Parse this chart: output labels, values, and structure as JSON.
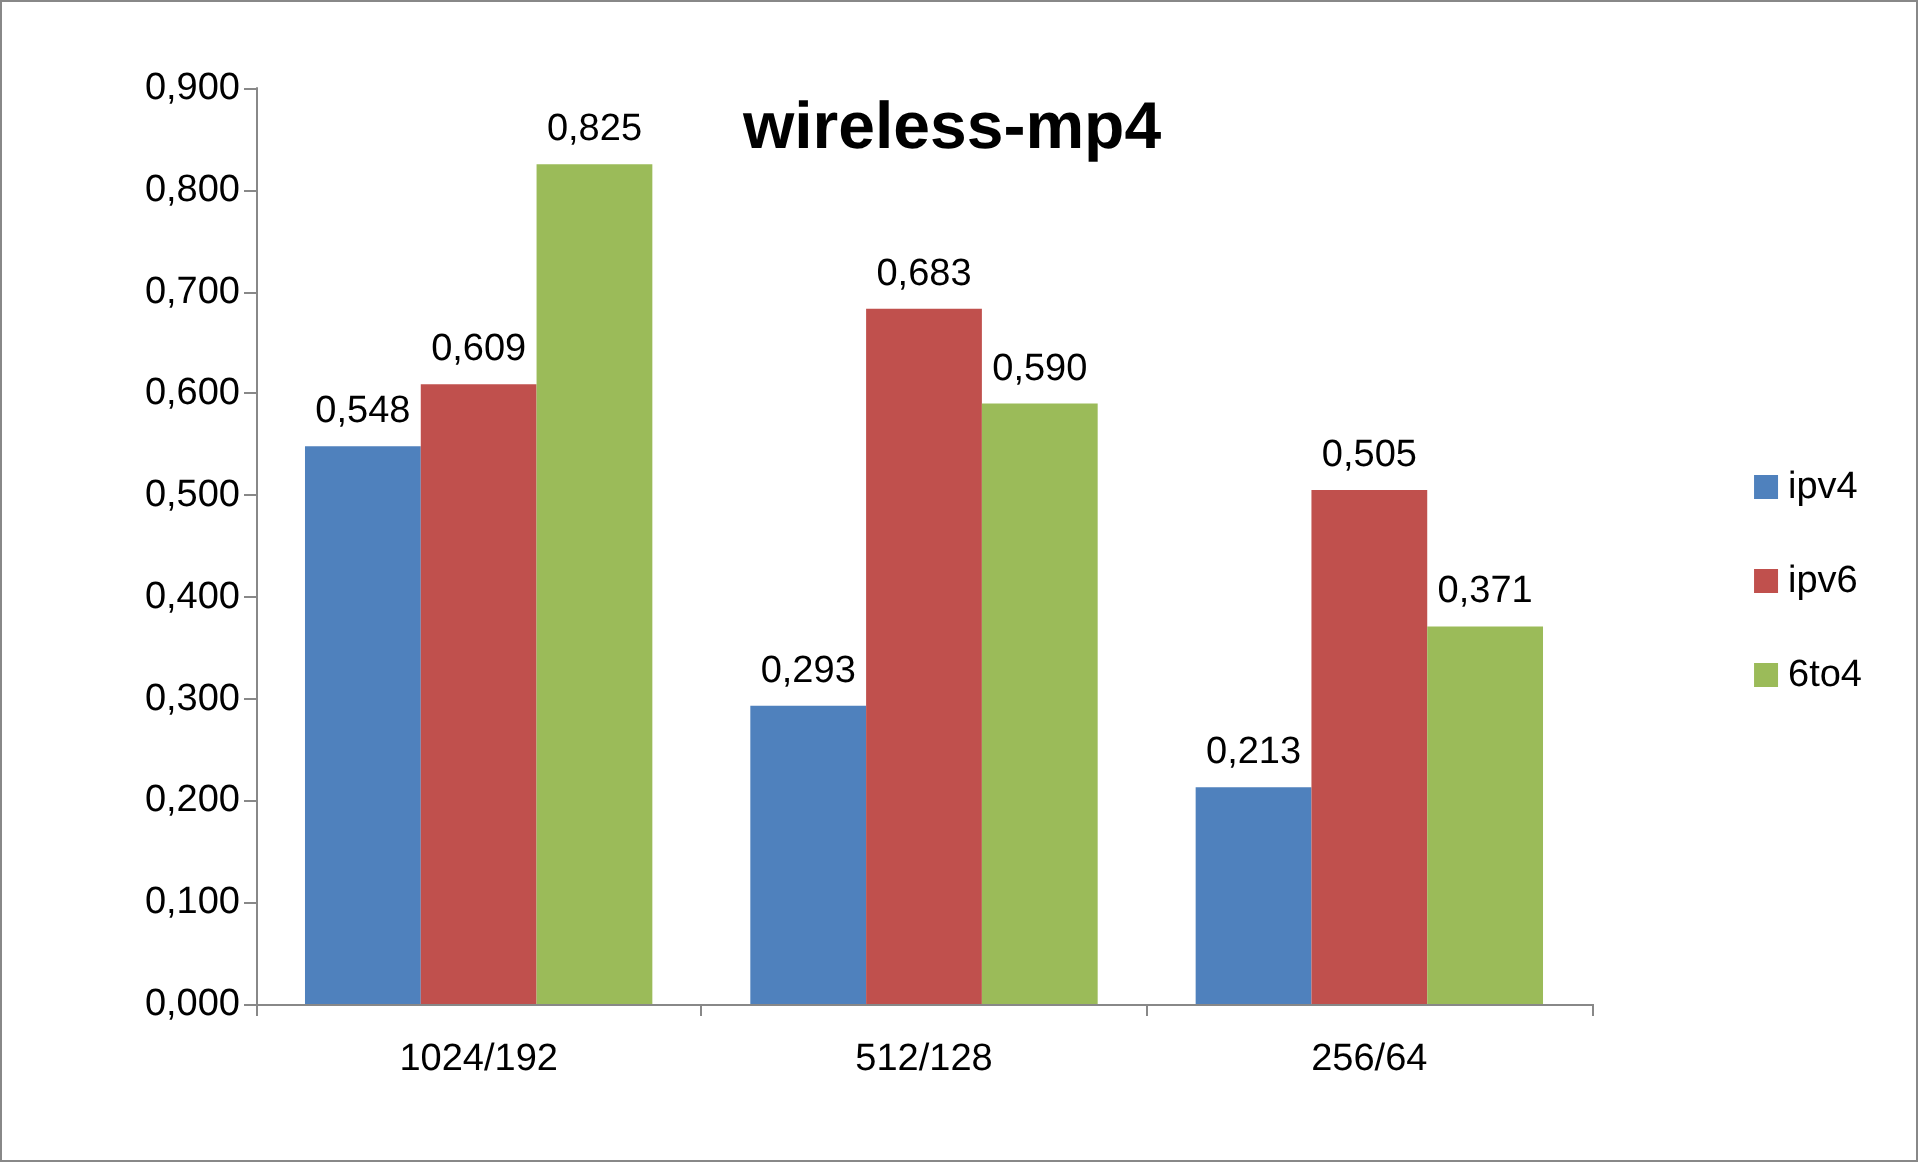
{
  "chart_data": {
    "type": "bar",
    "title": "wireless-mp4",
    "categories": [
      "1024/192",
      "512/128",
      "256/64"
    ],
    "series": [
      {
        "name": "ipv4",
        "color": "#4f81bd",
        "values": [
          0.548,
          0.293,
          0.213
        ],
        "value_labels": [
          "0,548",
          "0,293",
          "0,213"
        ]
      },
      {
        "name": "ipv6",
        "color": "#c0504d",
        "values": [
          0.609,
          0.683,
          0.505
        ],
        "value_labels": [
          "0,609",
          "0,683",
          "0,505"
        ]
      },
      {
        "name": "6to4",
        "color": "#9bbb59",
        "values": [
          0.825,
          0.59,
          0.371
        ],
        "value_labels": [
          "0,825",
          "0,590",
          "0,371"
        ]
      }
    ],
    "ylim": [
      0,
      0.9
    ],
    "yticks": [
      {
        "value": 0,
        "label": "0,000"
      },
      {
        "value": 0.1,
        "label": "0,100"
      },
      {
        "value": 0.2,
        "label": "0,200"
      },
      {
        "value": 0.3,
        "label": "0,300"
      },
      {
        "value": 0.4,
        "label": "0,400"
      },
      {
        "value": 0.5,
        "label": "0,500"
      },
      {
        "value": 0.6,
        "label": "0,600"
      },
      {
        "value": 0.7,
        "label": "0,700"
      },
      {
        "value": 0.8,
        "label": "0,800"
      },
      {
        "value": 0.9,
        "label": "0,900"
      }
    ],
    "grid": false,
    "legend": "right"
  }
}
